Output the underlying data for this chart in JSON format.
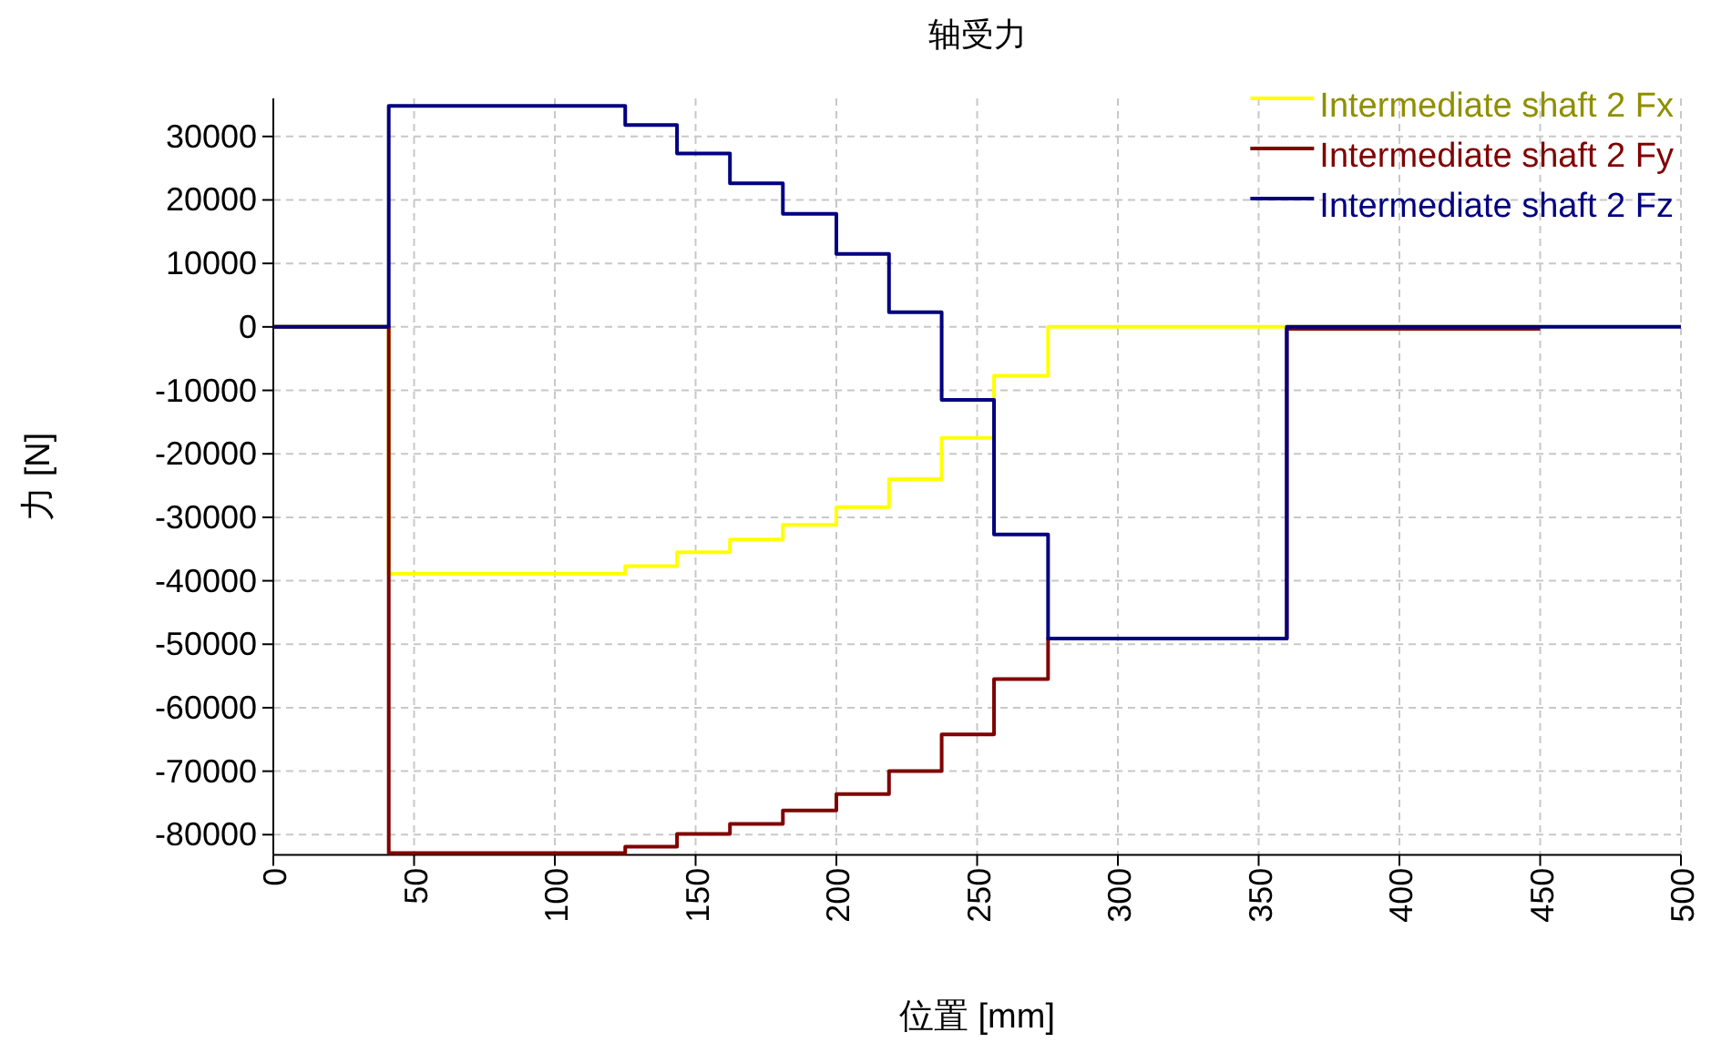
{
  "chart_data": {
    "type": "step",
    "title": "轴受力",
    "xlabel": "位置 [mm]",
    "ylabel": "力 [N]",
    "xlim": [
      0,
      500
    ],
    "ylim": [
      -83200,
      36000
    ],
    "xticks": [
      0,
      50,
      100,
      150,
      200,
      250,
      300,
      350,
      400,
      450,
      500
    ],
    "yticks": [
      -80000,
      -70000,
      -60000,
      -50000,
      -40000,
      -30000,
      -20000,
      -10000,
      0,
      10000,
      20000,
      30000
    ],
    "grid": true,
    "legend": "top right",
    "line_style": "solid",
    "series": [
      {
        "name": "Intermediate shaft 2 Fx",
        "color": "#ffff00",
        "x": [
          0,
          41,
          125,
          143.4,
          162.2,
          181,
          200,
          218.7,
          237.4,
          256,
          275.2,
          450
        ],
        "values": [
          0,
          -38900,
          -37700,
          -35500,
          -33500,
          -31200,
          -28400,
          -24000,
          -17500,
          -7700,
          0,
          0
        ]
      },
      {
        "name": "Intermediate shaft 2 Fy",
        "color": "#800000",
        "x": [
          0,
          41,
          125,
          143.4,
          162.2,
          181,
          200,
          218.7,
          237.4,
          256,
          275.2,
          360,
          450
        ],
        "values": [
          0,
          -82900,
          -81900,
          -79900,
          -78300,
          -76200,
          -73600,
          -70000,
          -64200,
          -55500,
          -49100,
          -300,
          -300
        ]
      },
      {
        "name": "Intermediate shaft 2 Fz",
        "color": "#000080",
        "x": [
          0,
          41,
          125,
          143.4,
          162.2,
          181,
          200,
          218.7,
          237.4,
          256,
          275.2,
          360,
          500
        ],
        "values": [
          0,
          34800,
          31800,
          27300,
          22600,
          17800,
          11500,
          2300,
          -11500,
          -32700,
          -49100,
          0,
          0
        ]
      }
    ]
  }
}
